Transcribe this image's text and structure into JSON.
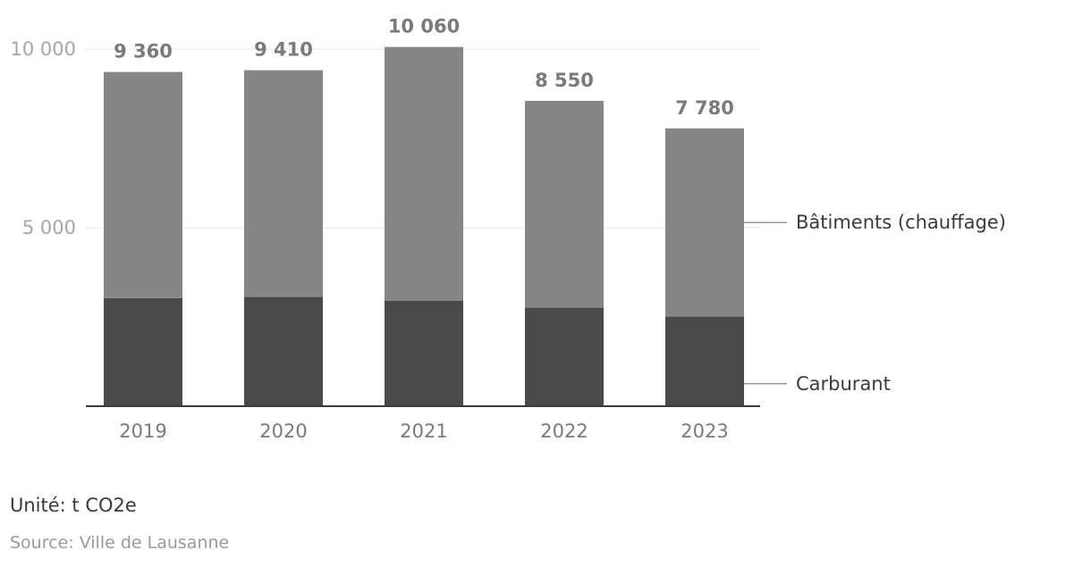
{
  "chart_data": {
    "type": "bar",
    "stacked": true,
    "categories": [
      "2019",
      "2020",
      "2021",
      "2022",
      "2023"
    ],
    "series": [
      {
        "name": "Carburant",
        "values": [
          3030,
          3060,
          2950,
          2760,
          2510
        ],
        "color": "#4a4a4a"
      },
      {
        "name": "Bâtiments (chauffage)",
        "values": [
          6330,
          6350,
          7110,
          5790,
          5270
        ],
        "color": "#868686"
      }
    ],
    "totals": [
      "9 360",
      "9 410",
      "10 060",
      "8 550",
      "7 780"
    ],
    "y_ticks": [
      {
        "value": 5000,
        "label": "5 000"
      },
      {
        "value": 10000,
        "label": "10 000"
      }
    ],
    "ylim": [
      0,
      10000
    ],
    "grid": true,
    "legend": "right, inline labels"
  },
  "footer": {
    "unit": "Unité: t CO2e",
    "source": "Source: Ville de Lausanne"
  }
}
